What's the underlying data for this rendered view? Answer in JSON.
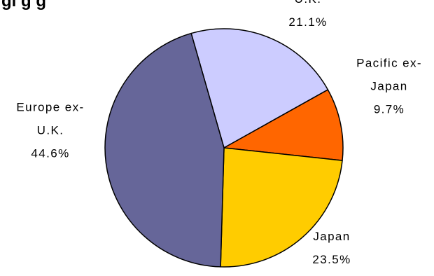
{
  "chart_data": {
    "type": "pie",
    "title": "gi g   g",
    "slices": [
      {
        "name": "U.K.",
        "name_lines": [
          "U.K."
        ],
        "value": 21.1,
        "value_label": "21.1%",
        "color": "#ccccff"
      },
      {
        "name": "Pacific ex-Japan",
        "name_lines": [
          "Pacific ex-",
          "Japan"
        ],
        "value": 9.7,
        "value_label": "9.7%",
        "color": "#ff6600"
      },
      {
        "name": "Japan",
        "name_lines": [
          "Japan"
        ],
        "value": 23.5,
        "value_label": "23.5%",
        "color": "#ffcc00"
      },
      {
        "name": "Europe ex-U.K.",
        "name_lines": [
          "Europe ex-",
          "U.K."
        ],
        "value": 44.6,
        "value_label": "44.6%",
        "color": "#666699"
      }
    ],
    "start_angle_deg": -16,
    "direction": "clockwise",
    "legend": "none",
    "outline_color": "#000000"
  }
}
